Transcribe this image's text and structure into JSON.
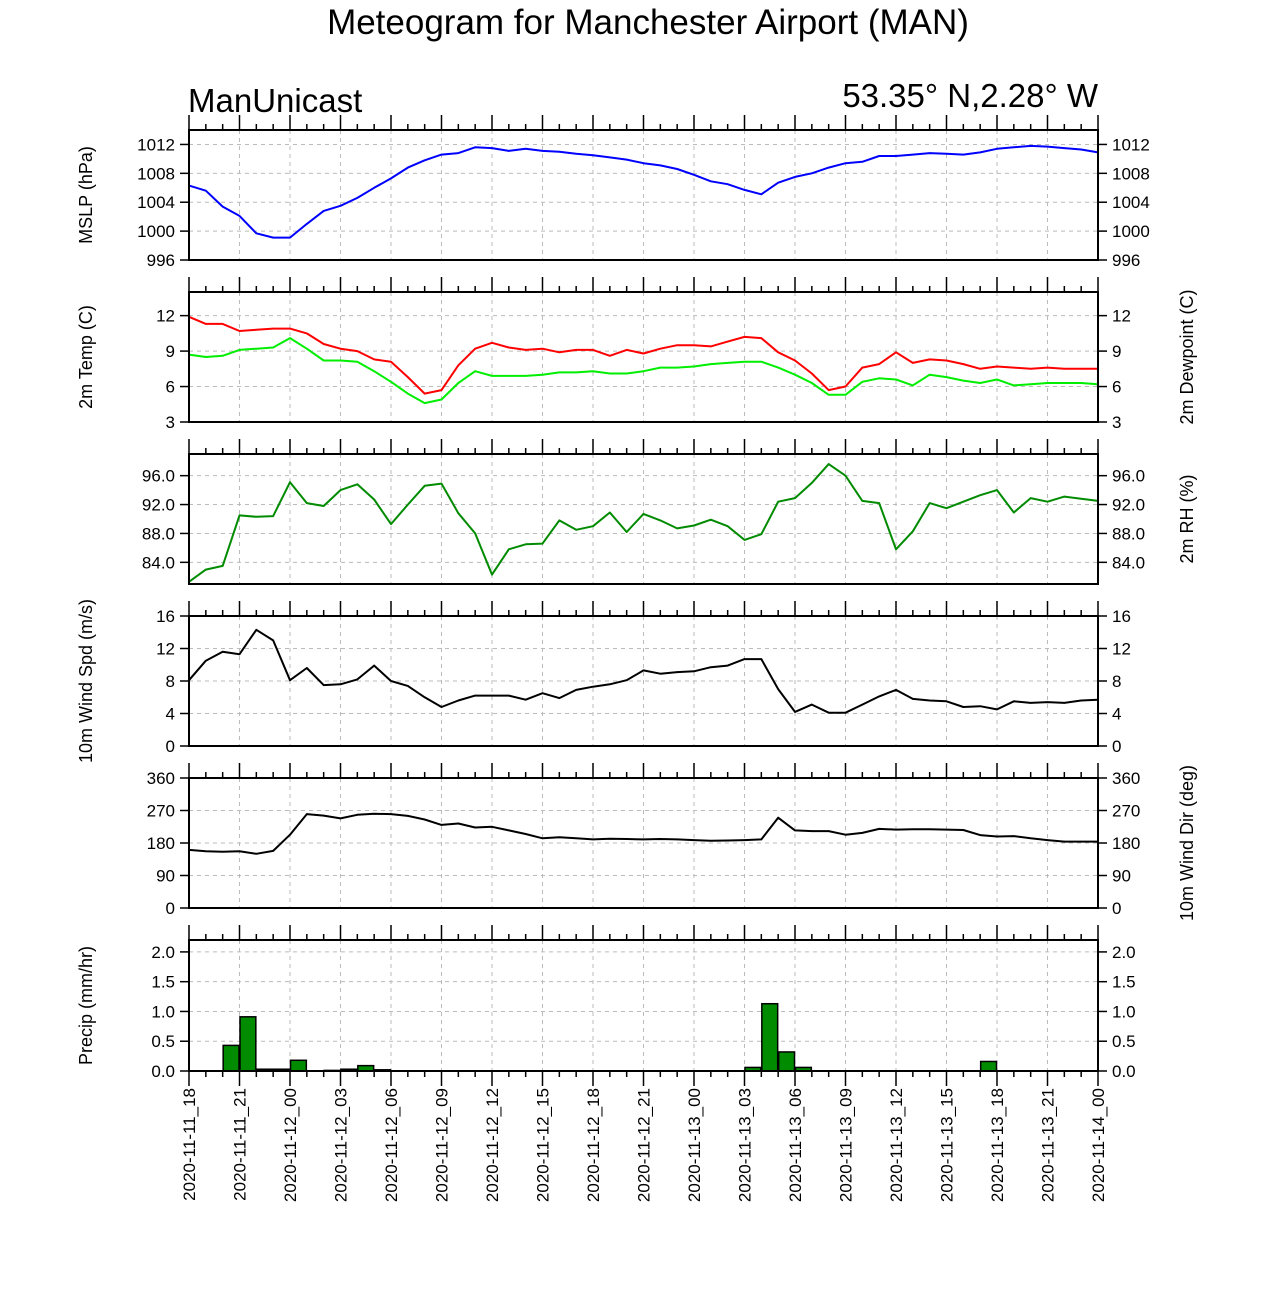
{
  "header": {
    "title": "Meteogram for Manchester Airport (MAN)",
    "left_label": "ManUnicast",
    "right_label": "53.35° N,2.28° W"
  },
  "chart_data": [
    {
      "type": "line",
      "id": "mslp",
      "ylabel_left": "MSLP (hPa)",
      "ylabel_right": "",
      "ylim": [
        996,
        1014
      ],
      "yticks": [
        996,
        1000,
        1004,
        1008,
        1012
      ],
      "ytick_labels": [
        "996",
        "1000",
        "1004",
        "1008",
        "1012"
      ],
      "grid": true,
      "series": [
        {
          "color": "#0000ff",
          "values": [
            1006.3,
            1005.6,
            1003.4,
            1002.1,
            999.7,
            999.1,
            999.1,
            1001.0,
            1002.8,
            1003.5,
            1004.6,
            1006.0,
            1007.3,
            1008.8,
            1009.8,
            1010.6,
            1010.8,
            1011.6,
            1011.5,
            1011.1,
            1011.4,
            1011.1,
            1011.0,
            1010.7,
            1010.5,
            1010.2,
            1009.9,
            1009.4,
            1009.1,
            1008.6,
            1007.8,
            1006.9,
            1006.5,
            1005.7,
            1005.1,
            1006.7,
            1007.5,
            1008.0,
            1008.8,
            1009.4,
            1009.6,
            1010.4,
            1010.4,
            1010.6,
            1010.8,
            1010.7,
            1010.6,
            1010.9,
            1011.4,
            1011.6,
            1011.8,
            1011.7,
            1011.5,
            1011.3,
            1010.9
          ]
        }
      ]
    },
    {
      "type": "line",
      "id": "temp",
      "ylabel_left": "2m Temp (C)",
      "ylabel_right": "2m Dewpoint (C)",
      "ylim": [
        3,
        14
      ],
      "yticks": [
        3,
        6,
        9,
        12
      ],
      "ytick_labels": [
        "3",
        "6",
        "9",
        "12"
      ],
      "grid": true,
      "series": [
        {
          "color": "#ff0000",
          "values": [
            11.9,
            11.3,
            11.3,
            10.7,
            10.8,
            10.9,
            10.9,
            10.5,
            9.6,
            9.2,
            9.0,
            8.3,
            8.1,
            6.8,
            5.4,
            5.7,
            7.8,
            9.2,
            9.7,
            9.3,
            9.1,
            9.2,
            8.9,
            9.1,
            9.1,
            8.6,
            9.1,
            8.8,
            9.2,
            9.5,
            9.5,
            9.4,
            9.8,
            10.2,
            10.1,
            8.9,
            8.2,
            7.1,
            5.7,
            6.0,
            7.6,
            7.9,
            8.9,
            8.0,
            8.3,
            8.2,
            7.9,
            7.5,
            7.7,
            7.6,
            7.5,
            7.6,
            7.5,
            7.5,
            7.5
          ]
        },
        {
          "color": "#00ee00",
          "values": [
            8.7,
            8.5,
            8.6,
            9.1,
            9.2,
            9.3,
            10.1,
            9.2,
            8.2,
            8.2,
            8.1,
            7.3,
            6.4,
            5.4,
            4.6,
            4.9,
            6.3,
            7.3,
            6.9,
            6.9,
            6.9,
            7.0,
            7.2,
            7.2,
            7.3,
            7.1,
            7.1,
            7.3,
            7.6,
            7.6,
            7.7,
            7.9,
            8.0,
            8.1,
            8.1,
            7.6,
            7.0,
            6.3,
            5.3,
            5.3,
            6.4,
            6.7,
            6.6,
            6.1,
            7.0,
            6.8,
            6.5,
            6.3,
            6.6,
            6.1,
            6.2,
            6.3,
            6.3,
            6.3,
            6.2
          ]
        }
      ]
    },
    {
      "type": "line",
      "id": "rh",
      "ylabel_left": "",
      "ylabel_right": "2m RH (%)",
      "ylim": [
        81,
        99
      ],
      "yticks": [
        84,
        88,
        92,
        96
      ],
      "ytick_labels": [
        "84.0",
        "88.0",
        "92.0",
        "96.0"
      ],
      "grid": true,
      "series": [
        {
          "color": "#008b00",
          "values": [
            81.3,
            83.0,
            83.5,
            90.5,
            90.3,
            90.4,
            95.1,
            92.2,
            91.8,
            94.0,
            94.8,
            92.7,
            89.3,
            92.0,
            94.6,
            94.9,
            90.8,
            88.0,
            82.3,
            85.8,
            86.5,
            86.6,
            89.8,
            88.5,
            89.0,
            90.9,
            88.2,
            90.7,
            89.8,
            88.7,
            89.1,
            89.9,
            89.0,
            87.1,
            87.9,
            92.4,
            92.9,
            95.0,
            97.6,
            96.0,
            92.5,
            92.2,
            85.8,
            88.3,
            92.2,
            91.5,
            92.4,
            93.3,
            94.0,
            90.9,
            92.9,
            92.4,
            93.1,
            92.8,
            92.5
          ]
        }
      ]
    },
    {
      "type": "line",
      "id": "wspd",
      "ylabel_left": "10m Wind Spd (m/s)",
      "ylabel_right": "",
      "ylim": [
        0,
        16
      ],
      "yticks": [
        0,
        4,
        8,
        12,
        16
      ],
      "ytick_labels": [
        "0",
        "4",
        "8",
        "12",
        "16"
      ],
      "grid": true,
      "series": [
        {
          "color": "#000000",
          "values": [
            8.1,
            10.5,
            11.6,
            11.3,
            14.3,
            13.0,
            8.1,
            9.6,
            7.5,
            7.6,
            8.2,
            9.9,
            8.0,
            7.4,
            6.0,
            4.8,
            5.6,
            6.2,
            6.2,
            6.2,
            5.7,
            6.5,
            5.9,
            6.9,
            7.3,
            7.6,
            8.1,
            9.3,
            8.9,
            9.1,
            9.2,
            9.7,
            9.9,
            10.7,
            10.7,
            7.0,
            4.2,
            5.1,
            4.1,
            4.1,
            5.1,
            6.1,
            6.9,
            5.8,
            5.6,
            5.5,
            4.8,
            4.9,
            4.5,
            5.5,
            5.3,
            5.4,
            5.3,
            5.6,
            5.7
          ]
        }
      ]
    },
    {
      "type": "line",
      "id": "wdir",
      "ylabel_left": "",
      "ylabel_right": "10m Wind Dir (deg)",
      "ylim": [
        0,
        360
      ],
      "yticks": [
        0,
        90,
        180,
        270,
        360
      ],
      "ytick_labels": [
        "0",
        "90",
        "180",
        "270",
        "360"
      ],
      "grid": true,
      "series": [
        {
          "color": "#000000",
          "values": [
            161,
            157,
            156,
            157,
            150,
            158,
            203,
            260,
            256,
            248,
            258,
            261,
            260,
            255,
            245,
            230,
            234,
            223,
            225,
            215,
            205,
            193,
            196,
            193,
            190,
            192,
            191,
            190,
            191,
            190,
            188,
            186,
            187,
            188,
            190,
            250,
            215,
            213,
            213,
            203,
            208,
            219,
            217,
            218,
            218,
            217,
            216,
            202,
            198,
            199,
            193,
            188,
            184,
            184,
            184
          ]
        }
      ]
    },
    {
      "type": "bar",
      "id": "precip",
      "ylabel_left": "Precip (mm/hr)",
      "ylabel_right": "",
      "ylim": [
        0,
        2.2
      ],
      "yticks": [
        0.0,
        0.5,
        1.0,
        1.5,
        2.0
      ],
      "ytick_labels": [
        "0.0",
        "0.5",
        "1.0",
        "1.5",
        "2.0"
      ],
      "grid": true,
      "bar_color": "#008b00",
      "values": [
        0,
        0,
        0.43,
        0.91,
        0.03,
        0.03,
        0.18,
        0,
        0.01,
        0.03,
        0.09,
        0.02,
        0,
        0,
        0,
        0,
        0,
        0,
        0,
        0,
        0,
        0,
        0,
        0,
        0,
        0,
        0,
        0,
        0,
        0,
        0,
        0,
        0,
        0.06,
        1.13,
        0.32,
        0.06,
        0,
        0,
        0,
        0,
        0,
        0,
        0,
        0,
        0,
        0,
        0.16,
        0,
        0,
        0,
        0,
        0,
        0
      ]
    }
  ],
  "x_axis": {
    "tick_labels": [
      "2020-11-11_18",
      "2020-11-11_21",
      "2020-11-12_00",
      "2020-11-12_03",
      "2020-11-12_06",
      "2020-11-12_09",
      "2020-11-12_12",
      "2020-11-12_15",
      "2020-11-12_18",
      "2020-11-12_21",
      "2020-11-13_00",
      "2020-11-13_03",
      "2020-11-13_06",
      "2020-11-13_09",
      "2020-11-13_12",
      "2020-11-13_15",
      "2020-11-13_18",
      "2020-11-13_21",
      "2020-11-14_00"
    ]
  }
}
